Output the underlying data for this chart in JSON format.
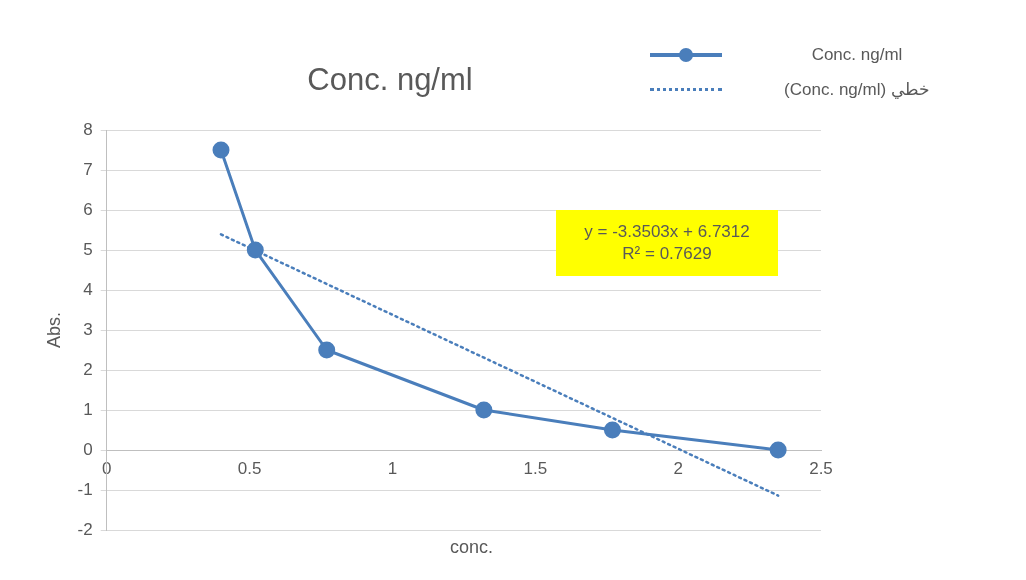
{
  "chart_data": {
    "type": "line",
    "title": "Conc. ng/ml",
    "xlabel": "conc.",
    "ylabel": "Abs.",
    "series": [
      {
        "name": "Conc. ng/ml",
        "type": "line",
        "color": "#4a7ebb",
        "marker": "circle",
        "line_style": "solid",
        "x": [
          0.4,
          0.52,
          0.77,
          1.32,
          1.77,
          2.35
        ],
        "values": [
          7.5,
          5,
          2.5,
          1,
          0.5,
          0
        ]
      },
      {
        "name": "خطي (Conc. ng/ml)",
        "type": "line",
        "color": "#4a7ebb",
        "marker": "none",
        "line_style": "dotted",
        "x": [
          0.4,
          2.35
        ],
        "values": [
          5.39,
          -1.14
        ]
      }
    ],
    "xlim": [
      0,
      2.5
    ],
    "xticks": [
      0,
      0.5,
      1,
      1.5,
      2,
      2.5
    ],
    "ylim": [
      -2,
      8
    ],
    "yticks": [
      -2,
      -1,
      0,
      1,
      2,
      3,
      4,
      5,
      6,
      7,
      8
    ],
    "grid": "y",
    "legend": "top right",
    "annotations": [
      "y = -3.3503x + 6.7312",
      "R² = 0.7629"
    ]
  }
}
